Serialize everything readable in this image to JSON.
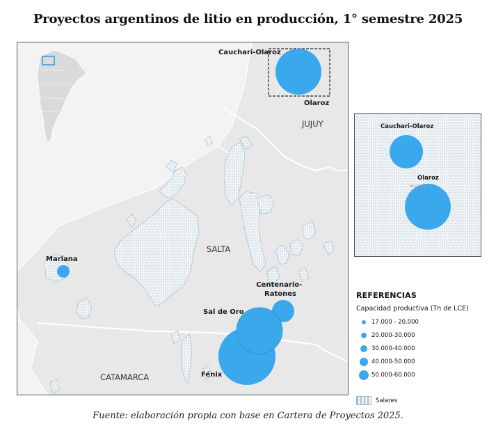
{
  "title": "Proyectos argentinos de litio en producción, 1° semestre 2025",
  "source": "Fuente: elaboración propia con base en Cartera de Proyectos 2025.",
  "provinces": {
    "jujuy": "JUJUY",
    "salta": "SALTA",
    "catamarca": "CATAMARCA"
  },
  "projects": {
    "cauchari": "Cauchari-Olaroz",
    "olaroz": "Olaroz",
    "mariana": "Mariana",
    "centenario": "Centenario-Ratones",
    "sal_de_oro": "Sal de Oro",
    "fenix": "Fénix"
  },
  "inset": {
    "cauchari": "Cauchari-Olaroz",
    "olaroz": "Olaroz",
    "olaroz_small": "de Olaroz"
  },
  "legend": {
    "title": "REFERENCIAS",
    "subtitle": "Capacidad productiva (Tn de LCE)",
    "classes": [
      "17.000 - 20.000",
      "20.000-30.000",
      "30.000-40.000",
      "40.000-50.000",
      "50.000-60.000"
    ],
    "salares": "Salares"
  },
  "colors": {
    "circle": "#3aa8ec",
    "land": "#ebebeb",
    "salar": "#f1f4f6",
    "border": "#ffffff"
  }
}
